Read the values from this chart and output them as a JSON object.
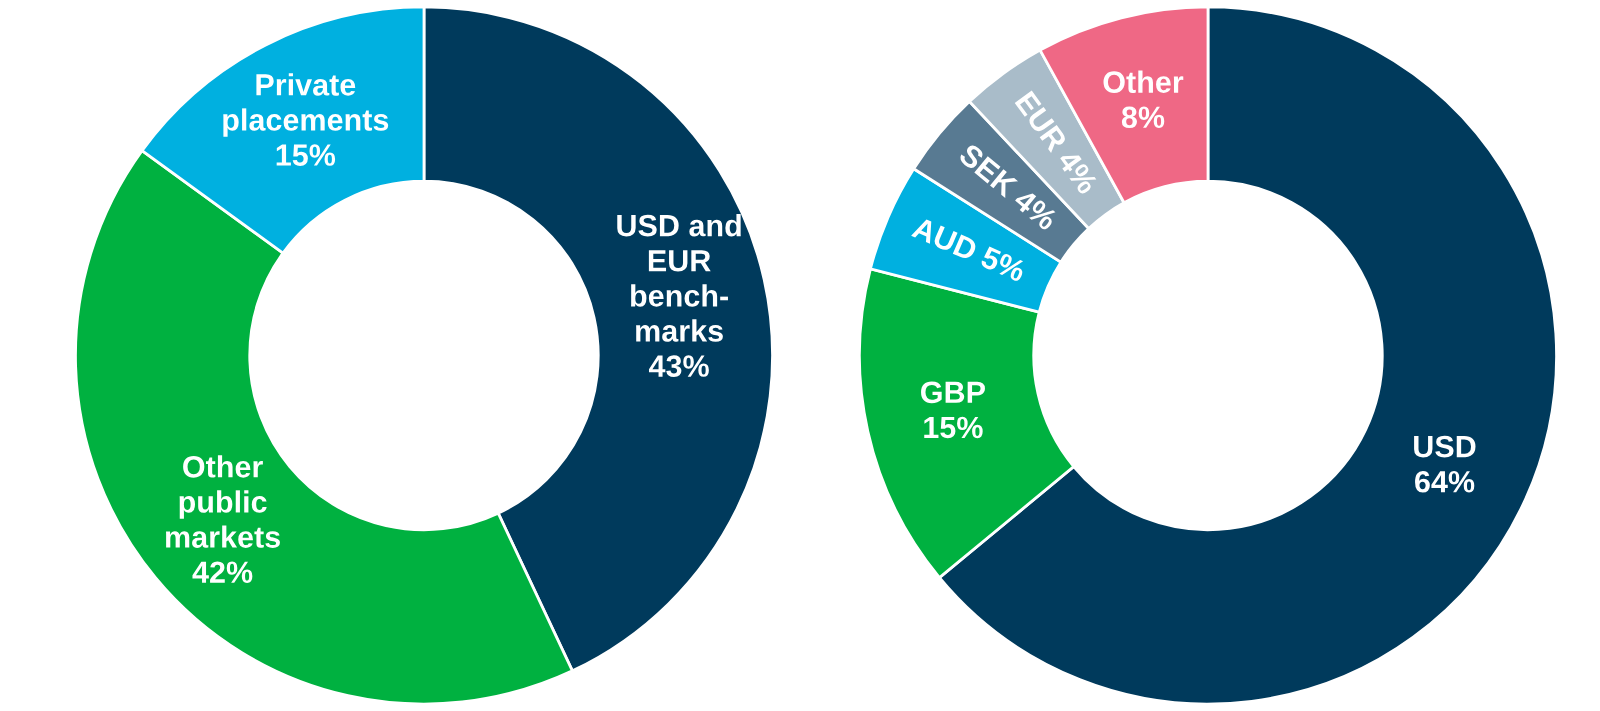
{
  "chart_data": [
    {
      "type": "donut",
      "categories": [
        "USD and\nEUR\nbench-\nmarks",
        "Other\npublic\nmarkets",
        "Private\nplacements"
      ],
      "values": [
        43,
        42,
        15
      ],
      "value_labels": [
        "43%",
        "42%",
        "15%"
      ],
      "colors": [
        "#003a5c",
        "#00b140",
        "#00b0e0"
      ]
    },
    {
      "type": "donut",
      "categories": [
        "USD",
        "GBP",
        "AUD",
        "SEK",
        "EUR",
        "Other"
      ],
      "values": [
        64,
        15,
        5,
        4,
        4,
        8
      ],
      "value_labels": [
        "64%",
        "15%",
        "5%",
        "4%",
        "4%",
        "8%"
      ],
      "colors": [
        "#003a5c",
        "#00b140",
        "#00b0e0",
        "#587a92",
        "#a9bcc9",
        "#ef6885"
      ]
    }
  ]
}
